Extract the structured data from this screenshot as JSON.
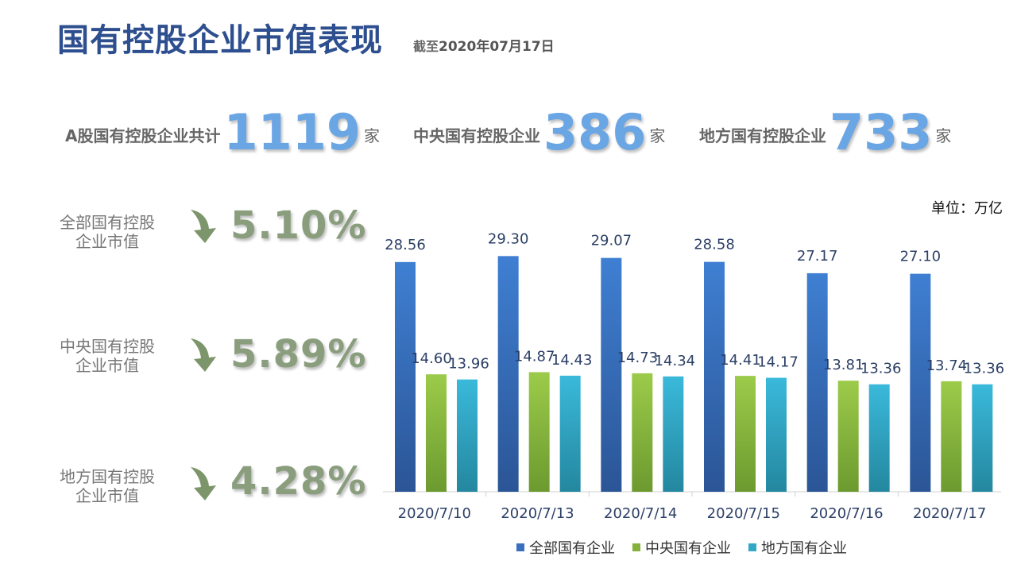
{
  "header": {
    "title": "国有控股企业市值表现",
    "subtitle_prefix": "截至",
    "subtitle_date": "2020年07月17日"
  },
  "stats": [
    {
      "label": "A股国有控股企业共计",
      "value": "1119",
      "unit": "家"
    },
    {
      "label": "中央国有控股企业",
      "value": "386",
      "unit": "家"
    },
    {
      "label": "地方国有控股企业",
      "value": "733",
      "unit": "家"
    }
  ],
  "metrics": [
    {
      "label_line1": "全部国有控股",
      "label_line2": "企业市值",
      "change": "5.10%",
      "icon": "arrow-down-icon"
    },
    {
      "label_line1": "中央国有控股",
      "label_line2": "企业市值",
      "change": "5.89%",
      "icon": "arrow-down-icon"
    },
    {
      "label_line1": "地方国有控股",
      "label_line2": "企业市值",
      "change": "4.28%",
      "icon": "arrow-down-icon"
    }
  ],
  "unit_note": "单位：万亿",
  "colors": {
    "total": "#3a6fbf",
    "central": "#86b03c",
    "local": "#32a8c6",
    "title": "#2e4f8f",
    "stat_number": "#6aa5e4",
    "metric": "#8a9e7e"
  },
  "chart_data": {
    "type": "bar",
    "categories": [
      "2020/7/10",
      "2020/7/13",
      "2020/7/14",
      "2020/7/15",
      "2020/7/16",
      "2020/7/17"
    ],
    "series": [
      {
        "name": "全部国有企业",
        "values": [
          28.56,
          29.3,
          29.07,
          28.58,
          27.17,
          27.1
        ]
      },
      {
        "name": "中央国有企业",
        "values": [
          14.6,
          14.87,
          14.73,
          14.41,
          13.81,
          13.74
        ]
      },
      {
        "name": "地方国有企业",
        "values": [
          13.96,
          14.43,
          14.34,
          14.17,
          13.36,
          13.36
        ]
      }
    ],
    "ylim": [
      0,
      32
    ],
    "grid": false,
    "legend": "bottom",
    "data_labels": true
  }
}
